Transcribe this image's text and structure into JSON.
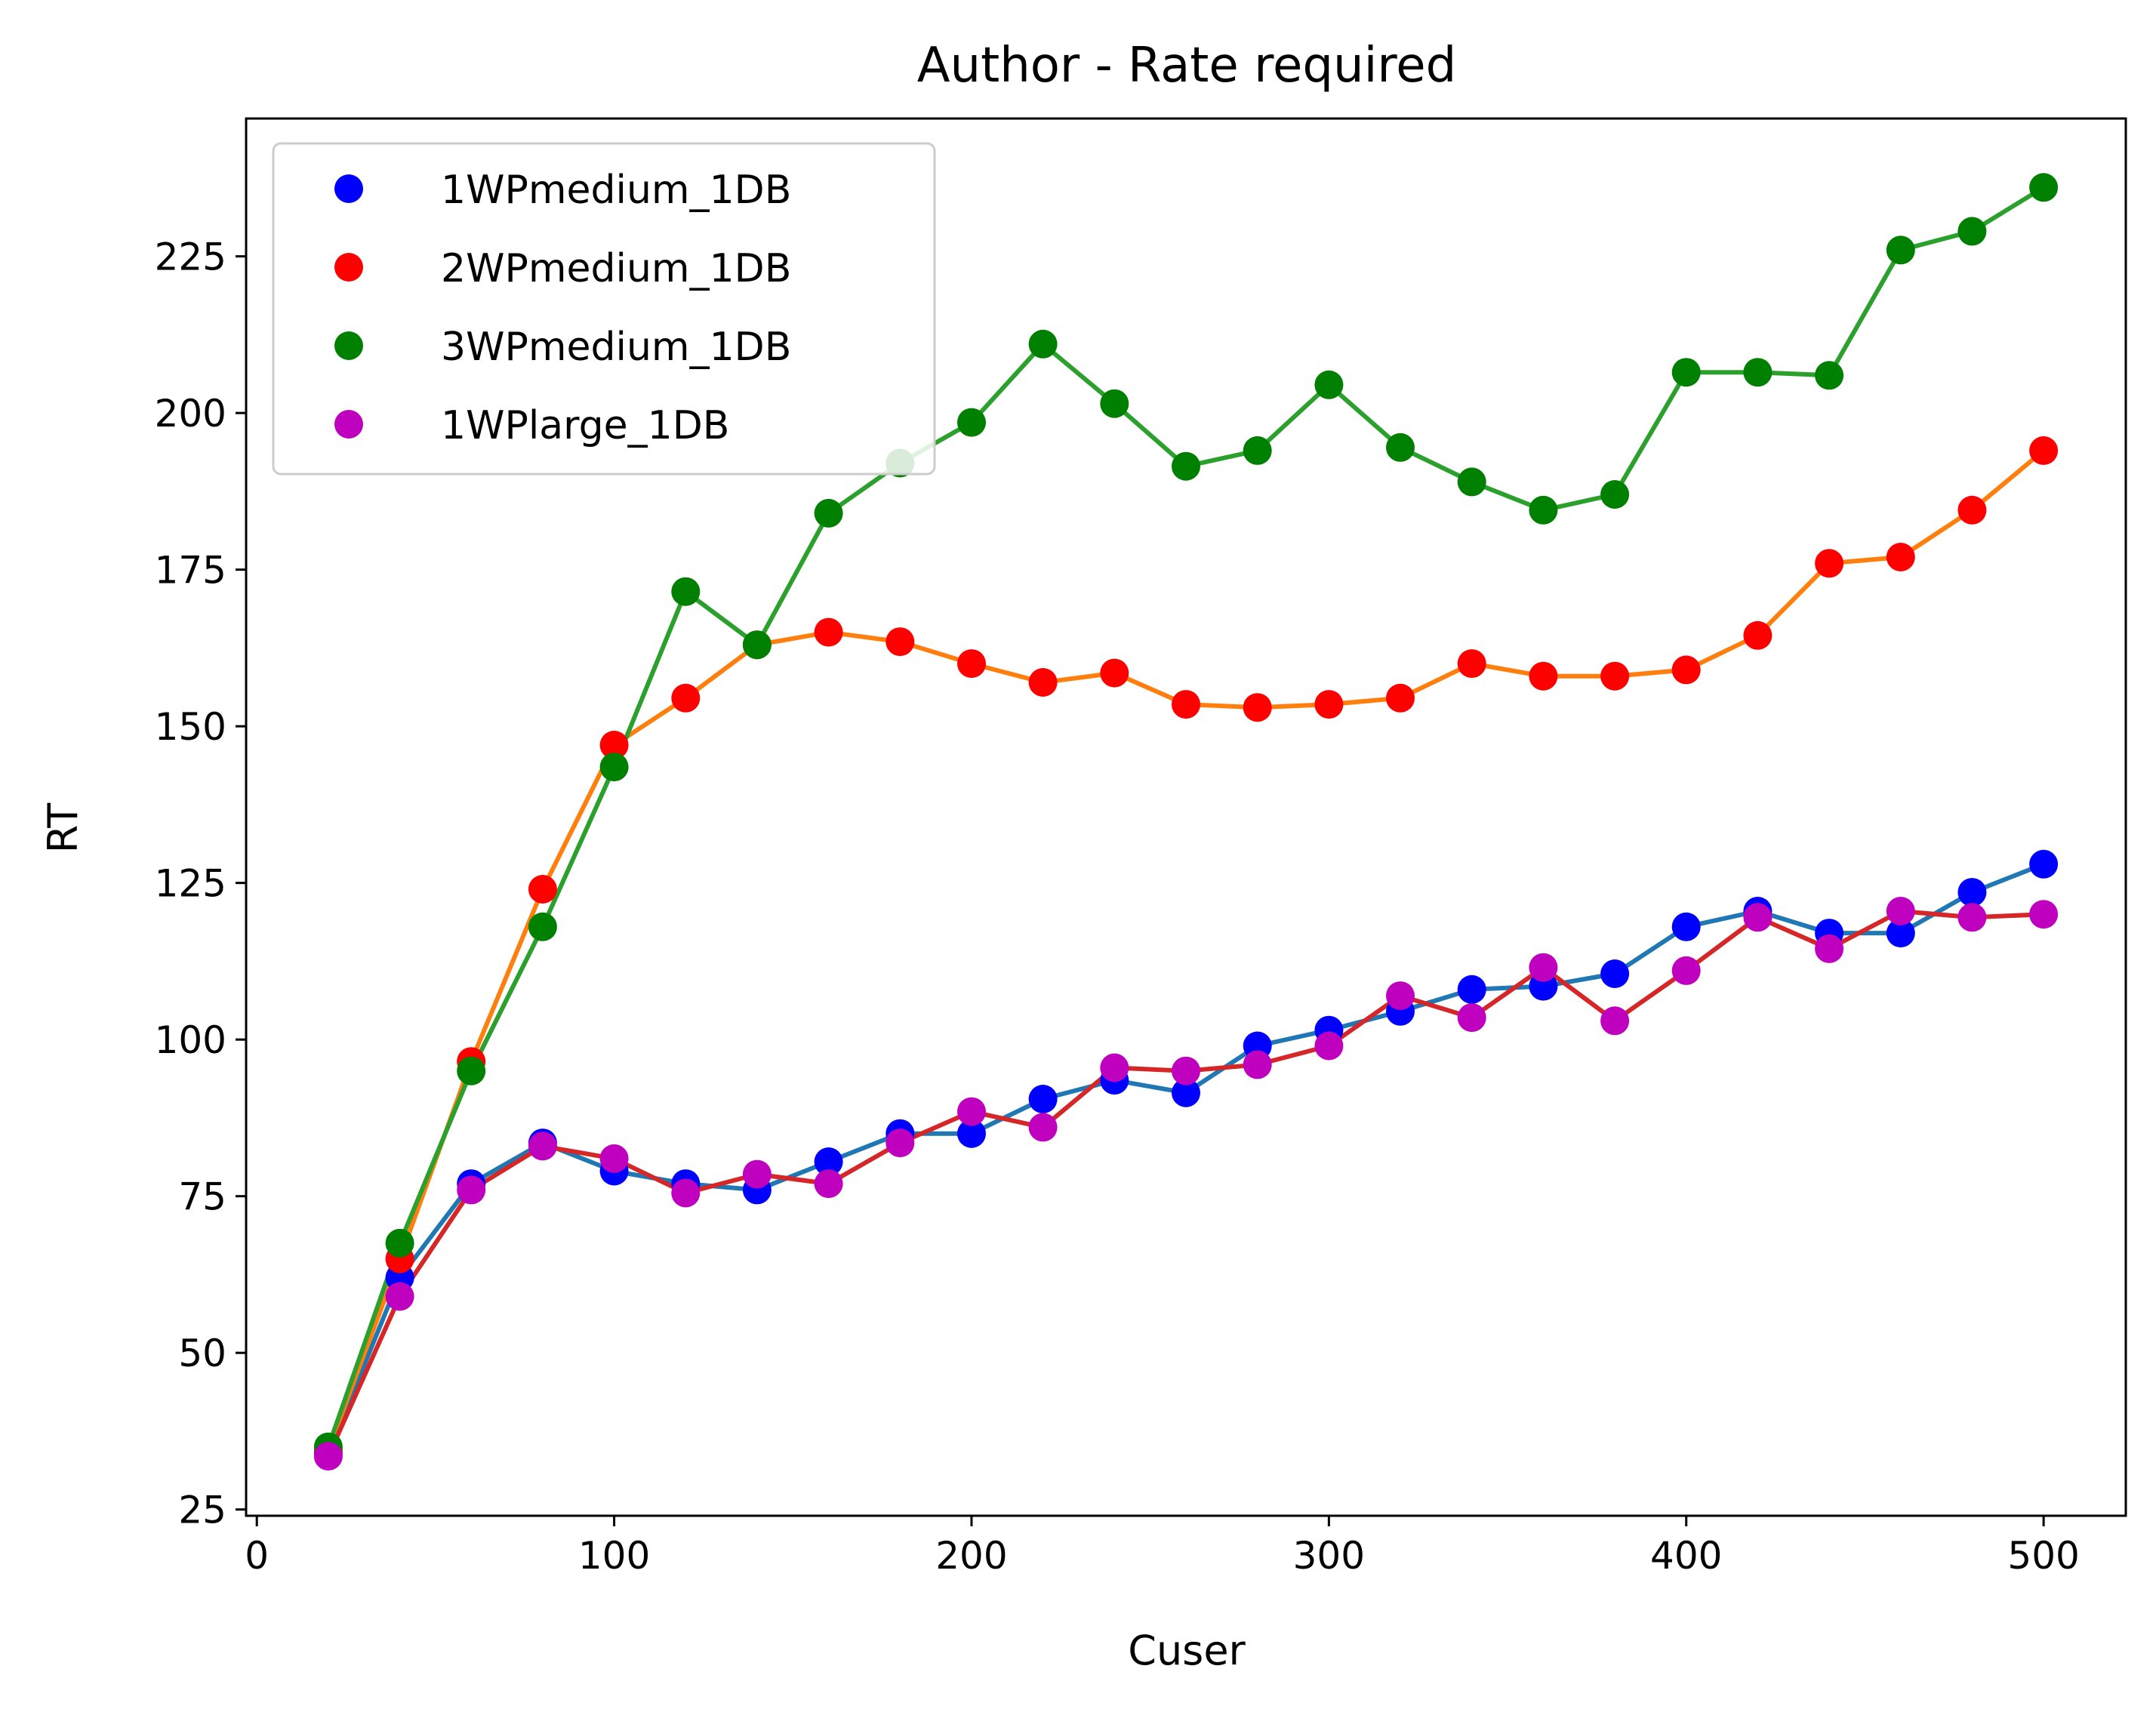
{
  "chart_data": {
    "type": "line",
    "title": "Author - Rate required",
    "xlabel": "Cuser",
    "ylabel": "RT",
    "xlim": [
      -3,
      523
    ],
    "ylim": [
      24,
      247
    ],
    "xticks": [
      "0",
      "100",
      "200",
      "300",
      "400",
      "500"
    ],
    "yticks": [
      "25",
      "50",
      "75",
      "100",
      "125",
      "150",
      "175",
      "200",
      "225"
    ],
    "grid": false,
    "legend_position": "top-left",
    "x": [
      20,
      40,
      60,
      80,
      100,
      120,
      140,
      160,
      180,
      200,
      220,
      240,
      260,
      280,
      300,
      320,
      340,
      360,
      380,
      400,
      420,
      440,
      460,
      480,
      500
    ],
    "series": [
      {
        "name": "1WPmedium_1DB",
        "marker_color": "#0000ff",
        "line_color": "#1f77b4",
        "values": [
          34,
          62,
          77,
          83.5,
          79,
          77,
          76,
          80.5,
          85,
          85,
          90.5,
          93.5,
          91.5,
          99,
          101.5,
          104.5,
          108,
          108.5,
          110.5,
          118,
          120.5,
          117,
          117,
          123.5,
          128
        ]
      },
      {
        "name": "2WPmedium_1DB",
        "marker_color": "#ff0000",
        "line_color": "#ff7f0e",
        "values": [
          34.5,
          65,
          96.5,
          124,
          147,
          154.5,
          163,
          165,
          163.5,
          160,
          157,
          158.5,
          153.5,
          153,
          153.5,
          154.5,
          160,
          158,
          158,
          159,
          164.5,
          176,
          177,
          184.5,
          194
        ]
      },
      {
        "name": "3WPmedium_1DB",
        "marker_color": "#008000",
        "line_color": "#2ca02c",
        "values": [
          35,
          67.5,
          95,
          118,
          143.5,
          171.5,
          163,
          184,
          192,
          198.5,
          211,
          201.5,
          191.5,
          194,
          204.5,
          194.5,
          189,
          184.5,
          187,
          206.5,
          206.5,
          206,
          226,
          229,
          236
        ]
      },
      {
        "name": "1WPlarge_1DB",
        "marker_color": "#bf00bf",
        "line_color": "#d62728",
        "values": [
          33.5,
          59,
          76,
          83,
          81,
          75.5,
          78.5,
          77,
          83.5,
          88.5,
          86,
          95.5,
          95,
          96,
          99,
          107,
          103.5,
          111.5,
          103,
          111,
          119.5,
          114.5,
          120.5,
          119.5,
          120
        ]
      }
    ]
  }
}
